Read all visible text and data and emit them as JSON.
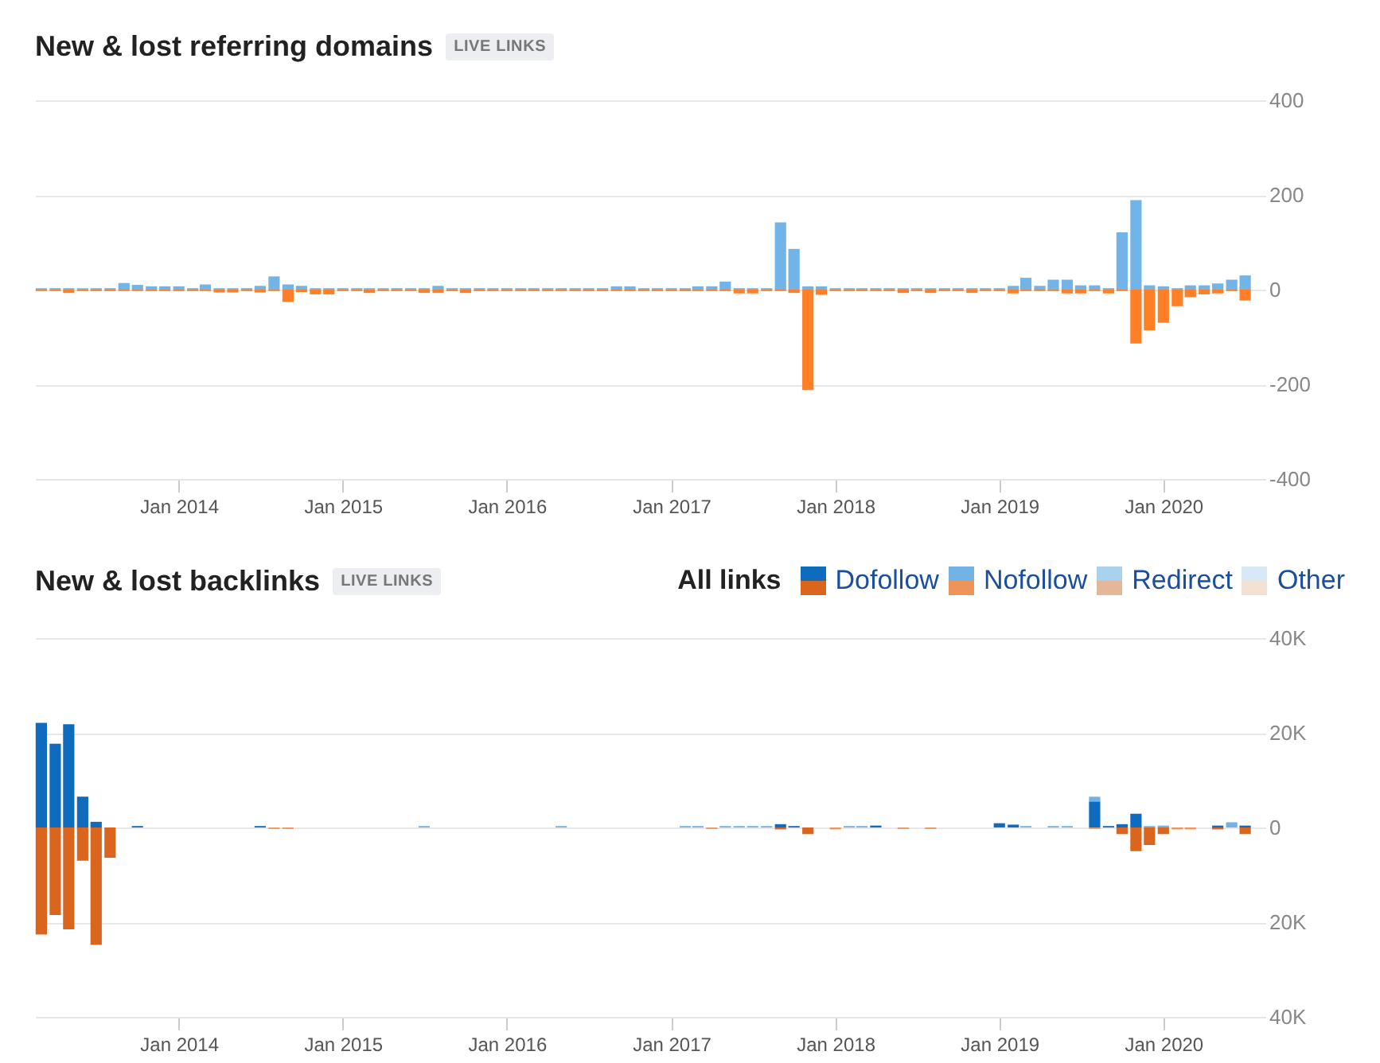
{
  "chart_data": [
    {
      "type": "bar",
      "title": "New & lost referring domains",
      "subtitle": "LIVE LINKS",
      "x": [
        "2013-03",
        "2013-04",
        "2013-05",
        "2013-06",
        "2013-07",
        "2013-08",
        "2013-09",
        "2013-10",
        "2013-11",
        "2013-12",
        "2014-01",
        "2014-02",
        "2014-03",
        "2014-04",
        "2014-05",
        "2014-06",
        "2014-07",
        "2014-08",
        "2014-09",
        "2014-10",
        "2014-11",
        "2014-12",
        "2015-01",
        "2015-02",
        "2015-03",
        "2015-04",
        "2015-05",
        "2015-06",
        "2015-07",
        "2015-08",
        "2015-09",
        "2015-10",
        "2015-11",
        "2015-12",
        "2016-01",
        "2016-02",
        "2016-03",
        "2016-04",
        "2016-05",
        "2016-06",
        "2016-07",
        "2016-08",
        "2016-09",
        "2016-10",
        "2016-11",
        "2016-12",
        "2017-01",
        "2017-02",
        "2017-03",
        "2017-04",
        "2017-05",
        "2017-06",
        "2017-07",
        "2017-08",
        "2017-09",
        "2017-10",
        "2017-11",
        "2017-12",
        "2018-01",
        "2018-02",
        "2018-03",
        "2018-04",
        "2018-05",
        "2018-06",
        "2018-07",
        "2018-08",
        "2018-09",
        "2018-10",
        "2018-11",
        "2018-12",
        "2019-01",
        "2019-02",
        "2019-03",
        "2019-04",
        "2019-05",
        "2019-06",
        "2019-07",
        "2019-08",
        "2019-09",
        "2019-10",
        "2019-11",
        "2019-12",
        "2020-01",
        "2020-02",
        "2020-03",
        "2020-04",
        "2020-05",
        "2020-06",
        "2020-07"
      ],
      "series": [
        {
          "color": "#73b4e8",
          "values": [
            3,
            3,
            3,
            3,
            3,
            3,
            14,
            10,
            7,
            7,
            7,
            3,
            11,
            3,
            3,
            3,
            8,
            28,
            11,
            8,
            3,
            3,
            3,
            3,
            3,
            3,
            3,
            3,
            3,
            8,
            3,
            3,
            3,
            3,
            3,
            3,
            3,
            3,
            3,
            3,
            3,
            3,
            7,
            7,
            3,
            3,
            3,
            3,
            7,
            7,
            17,
            3,
            3,
            3,
            142,
            86,
            7,
            7,
            3,
            3,
            3,
            3,
            3,
            3,
            3,
            3,
            3,
            3,
            3,
            3,
            3,
            8,
            25,
            8,
            21,
            21,
            9,
            9,
            3,
            121,
            189,
            9,
            7,
            3,
            9,
            9,
            13,
            21,
            30
          ]
        },
        {
          "color": "#ff7f27",
          "values": [
            -3,
            -3,
            -7,
            -3,
            -3,
            -3,
            -3,
            -3,
            -3,
            -3,
            -3,
            -3,
            -3,
            -6,
            -6,
            -3,
            -6,
            -3,
            -26,
            -5,
            -10,
            -10,
            -3,
            -3,
            -7,
            -3,
            -3,
            -3,
            -7,
            -7,
            -3,
            -7,
            -3,
            -3,
            -3,
            -3,
            -3,
            -3,
            -3,
            -3,
            -3,
            -3,
            -3,
            -3,
            -3,
            -3,
            -3,
            -3,
            -3,
            -3,
            -3,
            -8,
            -8,
            -3,
            -3,
            -7,
            -212,
            -11,
            -3,
            -3,
            -3,
            -3,
            -3,
            -7,
            -3,
            -7,
            -3,
            -3,
            -7,
            -3,
            -3,
            -8,
            -3,
            -3,
            -3,
            -8,
            -8,
            -3,
            -8,
            -3,
            -114,
            -86,
            -70,
            -35,
            -16,
            -10,
            -8,
            -3,
            -23
          ]
        }
      ],
      "xlim": [
        "2013-02-15",
        "2020-08-15"
      ],
      "xticks": [
        {
          "value": "2014-01",
          "label": "Jan 2014"
        },
        {
          "value": "2015-01",
          "label": "Jan 2015"
        },
        {
          "value": "2016-01",
          "label": "Jan 2016"
        },
        {
          "value": "2017-01",
          "label": "Jan 2017"
        },
        {
          "value": "2018-01",
          "label": "Jan 2018"
        },
        {
          "value": "2019-01",
          "label": "Jan 2019"
        },
        {
          "value": "2020-01",
          "label": "Jan 2020"
        }
      ],
      "ylim": [
        -400,
        400
      ],
      "yticks": [
        -400,
        -200,
        0,
        200,
        400
      ],
      "grid": "y"
    },
    {
      "type": "bar",
      "title": "New & lost backlinks",
      "subtitle": "LIVE LINKS",
      "legend_title": "All links",
      "legend": "top right",
      "stacked": true,
      "x": [
        "2013-03",
        "2013-04",
        "2013-05",
        "2013-06",
        "2013-07",
        "2013-08",
        "2013-09",
        "2013-10",
        "2013-11",
        "2013-12",
        "2014-01",
        "2014-02",
        "2014-03",
        "2014-04",
        "2014-05",
        "2014-06",
        "2014-07",
        "2014-08",
        "2014-09",
        "2014-10",
        "2014-11",
        "2014-12",
        "2015-01",
        "2015-02",
        "2015-03",
        "2015-04",
        "2015-05",
        "2015-06",
        "2015-07",
        "2015-08",
        "2015-09",
        "2015-10",
        "2015-11",
        "2015-12",
        "2016-01",
        "2016-02",
        "2016-03",
        "2016-04",
        "2016-05",
        "2016-06",
        "2016-07",
        "2016-08",
        "2016-09",
        "2016-10",
        "2016-11",
        "2016-12",
        "2017-01",
        "2017-02",
        "2017-03",
        "2017-04",
        "2017-05",
        "2017-06",
        "2017-07",
        "2017-08",
        "2017-09",
        "2017-10",
        "2017-11",
        "2017-12",
        "2018-01",
        "2018-02",
        "2018-03",
        "2018-04",
        "2018-05",
        "2018-06",
        "2018-07",
        "2018-08",
        "2018-09",
        "2018-10",
        "2018-11",
        "2018-12",
        "2019-01",
        "2019-02",
        "2019-03",
        "2019-04",
        "2019-05",
        "2019-06",
        "2019-07",
        "2019-08",
        "2019-09",
        "2019-10",
        "2019-11",
        "2019-12",
        "2020-01",
        "2020-02",
        "2020-03",
        "2020-04",
        "2020-05",
        "2020-06",
        "2020-07"
      ],
      "series": [
        {
          "name": "Dofollow",
          "color": "#0f6bbd",
          "values": [
            22100,
            17700,
            21800,
            6500,
            1200,
            null,
            null,
            300,
            null,
            null,
            null,
            null,
            null,
            null,
            null,
            null,
            300,
            null,
            null,
            null,
            null,
            null,
            null,
            null,
            null,
            null,
            null,
            null,
            null,
            null,
            null,
            null,
            null,
            null,
            null,
            null,
            null,
            null,
            null,
            null,
            null,
            null,
            null,
            null,
            null,
            null,
            null,
            null,
            null,
            null,
            null,
            null,
            null,
            null,
            700,
            300,
            null,
            null,
            null,
            null,
            null,
            400,
            null,
            null,
            null,
            null,
            null,
            null,
            null,
            null,
            900,
            600,
            null,
            null,
            null,
            null,
            null,
            5500,
            300,
            700,
            2900,
            null,
            null,
            null,
            null,
            null,
            400,
            null,
            400
          ]
        },
        {
          "color": "#d9651f",
          "values": [
            -22600,
            -18500,
            -21500,
            -7000,
            -24800,
            -6400,
            null,
            null,
            null,
            null,
            null,
            null,
            null,
            null,
            null,
            null,
            null,
            null,
            null,
            null,
            null,
            null,
            null,
            null,
            null,
            null,
            null,
            null,
            null,
            null,
            null,
            null,
            null,
            null,
            null,
            null,
            null,
            null,
            null,
            null,
            null,
            null,
            null,
            null,
            null,
            null,
            null,
            null,
            null,
            null,
            null,
            null,
            null,
            null,
            -400,
            null,
            -1400,
            null,
            null,
            null,
            null,
            null,
            null,
            null,
            null,
            null,
            null,
            null,
            null,
            null,
            null,
            null,
            null,
            null,
            null,
            null,
            null,
            null,
            null,
            -1400,
            -5000,
            -3700,
            -1400,
            null,
            null,
            null,
            -400,
            null,
            -1400
          ]
        },
        {
          "name": "Nofollow",
          "color": "#72b3e6",
          "values": [
            null,
            null,
            null,
            null,
            null,
            null,
            null,
            null,
            null,
            null,
            null,
            null,
            null,
            null,
            null,
            null,
            null,
            null,
            null,
            null,
            null,
            null,
            null,
            null,
            null,
            null,
            null,
            null,
            300,
            null,
            null,
            null,
            null,
            null,
            null,
            null,
            null,
            null,
            300,
            null,
            null,
            null,
            null,
            null,
            null,
            null,
            null,
            300,
            300,
            null,
            300,
            300,
            300,
            300,
            null,
            null,
            null,
            null,
            null,
            300,
            300,
            null,
            null,
            null,
            null,
            null,
            null,
            null,
            null,
            null,
            null,
            null,
            300,
            null,
            300,
            300,
            null,
            1000,
            null,
            null,
            null,
            300,
            400,
            null,
            null,
            null,
            null,
            1100,
            null
          ]
        },
        {
          "color": "#ec9459",
          "values": [
            null,
            null,
            null,
            null,
            null,
            null,
            null,
            null,
            null,
            null,
            null,
            null,
            null,
            null,
            null,
            null,
            null,
            -300,
            -300,
            null,
            null,
            null,
            null,
            null,
            null,
            null,
            null,
            null,
            null,
            null,
            null,
            null,
            null,
            null,
            null,
            null,
            null,
            null,
            null,
            null,
            null,
            null,
            null,
            null,
            null,
            null,
            null,
            null,
            null,
            -300,
            null,
            null,
            null,
            null,
            null,
            null,
            null,
            null,
            -400,
            null,
            null,
            null,
            null,
            -300,
            null,
            -300,
            null,
            null,
            null,
            null,
            null,
            null,
            null,
            null,
            null,
            null,
            null,
            -300,
            null,
            null,
            null,
            null,
            null,
            -400,
            -400,
            null,
            null,
            null,
            null
          ]
        },
        {
          "name": "Redirect",
          "color": "#a9d2ef",
          "values": [
            null,
            null,
            null,
            null,
            null,
            null,
            null,
            null,
            null,
            null,
            null,
            null,
            null,
            null,
            null,
            null,
            null,
            null,
            null,
            null,
            null,
            null,
            null,
            null,
            null,
            null,
            null,
            null,
            null,
            null,
            null,
            null,
            null,
            null,
            null,
            null,
            null,
            null,
            null,
            null,
            null,
            null,
            null,
            null,
            null,
            null,
            null,
            null,
            null,
            null,
            null,
            null,
            null,
            null,
            null,
            null,
            null,
            null,
            null,
            null,
            null,
            null,
            null,
            null,
            null,
            null,
            null,
            null,
            null,
            null,
            null,
            null,
            null,
            null,
            null,
            null,
            null,
            null,
            null,
            null,
            null,
            null,
            null,
            null,
            null,
            null,
            null,
            null,
            null
          ]
        },
        {
          "color": "#e3b798",
          "values": [
            null,
            null,
            null,
            null,
            null,
            null,
            null,
            null,
            null,
            null,
            null,
            null,
            null,
            null,
            null,
            null,
            null,
            null,
            null,
            null,
            null,
            null,
            null,
            null,
            null,
            null,
            null,
            null,
            null,
            null,
            null,
            null,
            null,
            null,
            null,
            null,
            null,
            null,
            null,
            null,
            null,
            null,
            null,
            null,
            null,
            null,
            null,
            null,
            null,
            null,
            null,
            null,
            null,
            null,
            null,
            null,
            null,
            null,
            null,
            null,
            null,
            null,
            null,
            null,
            null,
            null,
            null,
            null,
            null,
            null,
            null,
            null,
            null,
            null,
            null,
            null,
            null,
            null,
            null,
            null,
            null,
            null,
            null,
            null,
            null,
            null,
            null,
            null,
            null
          ]
        },
        {
          "name": "Other",
          "color": "#d8e9f6",
          "values": [
            null,
            null,
            null,
            null,
            null,
            null,
            null,
            null,
            null,
            null,
            null,
            null,
            null,
            null,
            null,
            null,
            null,
            null,
            null,
            null,
            null,
            null,
            null,
            null,
            null,
            null,
            null,
            null,
            null,
            null,
            null,
            null,
            null,
            null,
            null,
            null,
            null,
            null,
            null,
            null,
            null,
            null,
            null,
            null,
            null,
            null,
            null,
            null,
            null,
            null,
            null,
            null,
            null,
            null,
            null,
            null,
            null,
            null,
            null,
            null,
            null,
            null,
            null,
            null,
            null,
            null,
            null,
            null,
            null,
            null,
            null,
            null,
            null,
            null,
            null,
            null,
            null,
            null,
            null,
            null,
            null,
            null,
            null,
            null,
            null,
            null,
            null,
            null,
            null
          ]
        },
        {
          "color": "#f3e1d3",
          "values": [
            null,
            null,
            null,
            null,
            null,
            null,
            null,
            null,
            null,
            null,
            null,
            null,
            null,
            null,
            null,
            null,
            null,
            null,
            null,
            null,
            null,
            null,
            null,
            null,
            null,
            null,
            null,
            null,
            null,
            null,
            null,
            null,
            null,
            null,
            null,
            null,
            null,
            null,
            null,
            null,
            null,
            null,
            null,
            null,
            null,
            null,
            null,
            null,
            null,
            null,
            null,
            null,
            null,
            null,
            null,
            null,
            null,
            null,
            null,
            null,
            null,
            null,
            null,
            null,
            null,
            null,
            null,
            null,
            null,
            null,
            null,
            null,
            null,
            null,
            null,
            null,
            null,
            null,
            null,
            null,
            null,
            null,
            null,
            null,
            null,
            null,
            null,
            null,
            null
          ]
        }
      ],
      "xlim": [
        "2013-02-15",
        "2020-08-15"
      ],
      "xticks": [
        {
          "value": "2014-01",
          "label": "Jan 2014"
        },
        {
          "value": "2015-01",
          "label": "Jan 2015"
        },
        {
          "value": "2016-01",
          "label": "Jan 2016"
        },
        {
          "value": "2017-01",
          "label": "Jan 2017"
        },
        {
          "value": "2018-01",
          "label": "Jan 2018"
        },
        {
          "value": "2019-01",
          "label": "Jan 2019"
        },
        {
          "value": "2020-01",
          "label": "Jan 2020"
        }
      ],
      "ylim": [
        -40000,
        40000
      ],
      "yticks": [
        {
          "value": -40000,
          "label": "40K"
        },
        {
          "value": -20000,
          "label": "20K"
        },
        0,
        {
          "value": 20000,
          "label": "20K"
        },
        {
          "value": 40000,
          "label": "40K"
        }
      ],
      "grid": "y"
    }
  ]
}
